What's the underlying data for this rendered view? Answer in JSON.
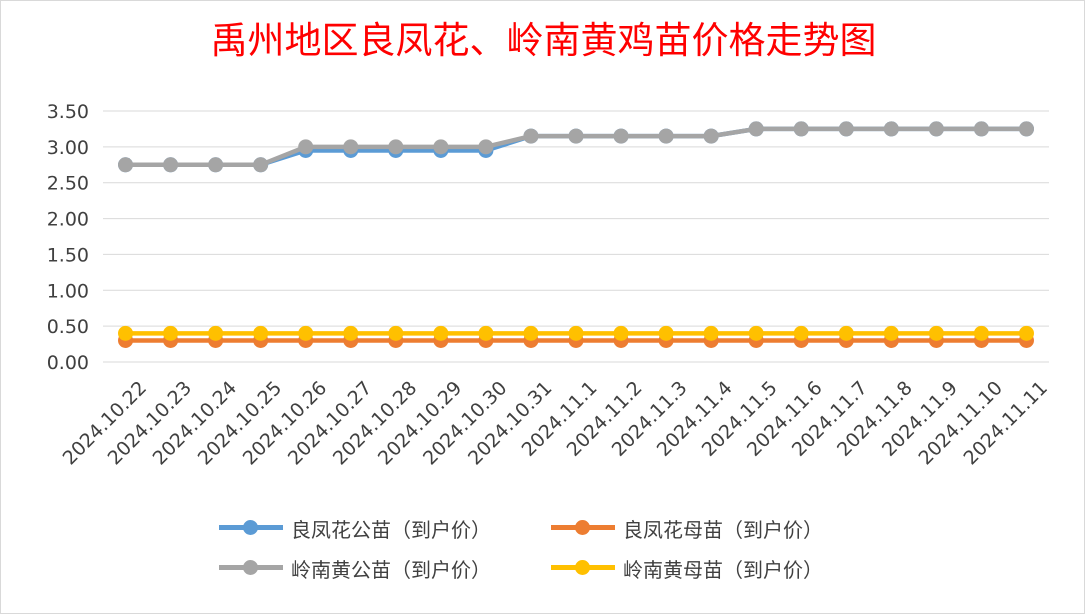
{
  "chart_data": {
    "type": "line",
    "title": "禹州地区良凤花、岭南黄鸡苗价格走势图",
    "xlabel": "",
    "ylabel": "",
    "ylim": [
      0,
      3.5
    ],
    "yticks": [
      "0.00",
      "0.50",
      "1.00",
      "1.50",
      "2.00",
      "2.50",
      "3.00",
      "3.50"
    ],
    "grid": true,
    "legend_position": "bottom",
    "categories": [
      "2024.10.22",
      "2024.10.23",
      "2024.10.24",
      "2024.10.25",
      "2024.10.26",
      "2024.10.27",
      "2024.10.28",
      "2024.10.29",
      "2024.10.30",
      "2024.10.31",
      "2024.11.1",
      "2024.11.2",
      "2024.11.3",
      "2024.11.4",
      "2024.11.5",
      "2024.11.6",
      "2024.11.7",
      "2024.11.8",
      "2024.11.9",
      "2024.11.10",
      "2024.11.11"
    ],
    "series": [
      {
        "name": "良凤花公苗（到户价）",
        "color": "#5b9bd5",
        "values": [
          2.75,
          2.75,
          2.75,
          2.75,
          2.95,
          2.95,
          2.95,
          2.95,
          2.95,
          3.15,
          3.15,
          3.15,
          3.15,
          3.15,
          3.25,
          3.25,
          3.25,
          3.25,
          3.25,
          3.25,
          3.25
        ]
      },
      {
        "name": "良凤花母苗（到户价）",
        "color": "#ed7d31",
        "values": [
          0.3,
          0.3,
          0.3,
          0.3,
          0.3,
          0.3,
          0.3,
          0.3,
          0.3,
          0.3,
          0.3,
          0.3,
          0.3,
          0.3,
          0.3,
          0.3,
          0.3,
          0.3,
          0.3,
          0.3,
          0.3
        ]
      },
      {
        "name": "岭南黄公苗（到户价）",
        "color": "#a5a5a5",
        "values": [
          2.75,
          2.75,
          2.75,
          2.75,
          3.0,
          3.0,
          3.0,
          3.0,
          3.0,
          3.15,
          3.15,
          3.15,
          3.15,
          3.15,
          3.25,
          3.25,
          3.25,
          3.25,
          3.25,
          3.25,
          3.25
        ]
      },
      {
        "name": "岭南黄母苗（到户价）",
        "color": "#ffc000",
        "values": [
          0.4,
          0.4,
          0.4,
          0.4,
          0.4,
          0.4,
          0.4,
          0.4,
          0.4,
          0.4,
          0.4,
          0.4,
          0.4,
          0.4,
          0.4,
          0.4,
          0.4,
          0.4,
          0.4,
          0.4,
          0.4
        ]
      }
    ],
    "gridline_color": "#d9d9d9",
    "title_color": "#ff0000"
  }
}
